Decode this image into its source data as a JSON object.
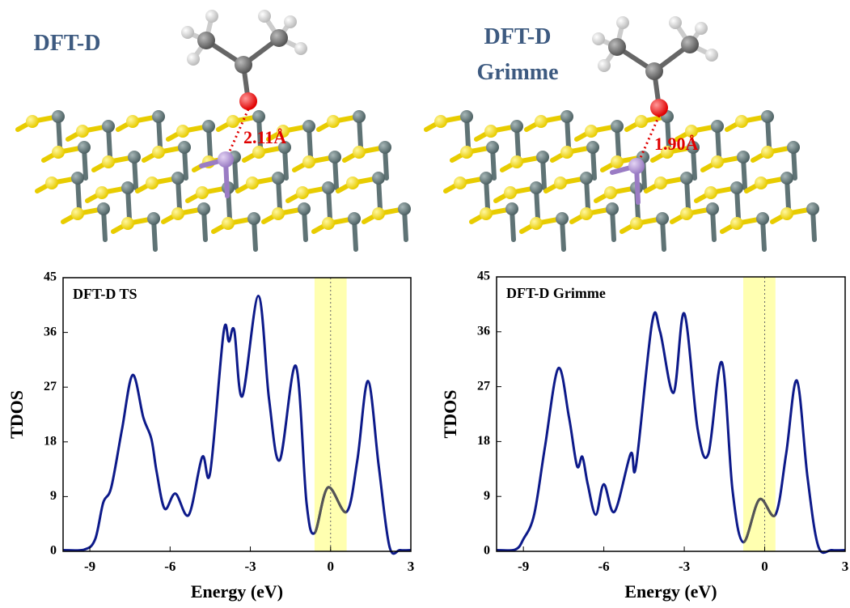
{
  "structures": [
    {
      "label": "DFT-D",
      "distance": "2.11Å"
    },
    {
      "label": "DFT-D Grimme",
      "distance": "1.90Å"
    }
  ],
  "chart_data": [
    {
      "type": "line",
      "title": "DFT-D TS",
      "x_label": "Energy (eV)",
      "y_label": "TDOS",
      "xlim": [
        -10,
        3
      ],
      "ylim": [
        0,
        45
      ],
      "xticks": [
        -9,
        -6,
        -3,
        0,
        3
      ],
      "yticks": [
        0,
        9,
        18,
        27,
        36,
        45
      ],
      "highlight": [
        -0.6,
        0.6
      ],
      "series": [
        {
          "color": "#0d1a8a",
          "x": [
            -10,
            -9.2,
            -8.8,
            -8.5,
            -8.2,
            -7.8,
            -7.4,
            -7.0,
            -6.7,
            -6.5,
            -6.2,
            -5.8,
            -5.3,
            -4.8,
            -4.5,
            -4.0,
            -3.8,
            -3.6,
            -3.3,
            -2.7,
            -2.3,
            -1.9,
            -1.3,
            -0.9,
            -0.6,
            -0.1,
            0.6,
            1.0,
            1.4,
            1.8,
            2.2,
            2.6,
            3
          ],
          "values": [
            0.2,
            0.3,
            2,
            8,
            10.5,
            20,
            29,
            22,
            18.5,
            13,
            7,
            9.5,
            6,
            15.5,
            13,
            36,
            34.5,
            36.3,
            25.5,
            42,
            25,
            15,
            30.5,
            8,
            3,
            10.5,
            6.5,
            15,
            28,
            14,
            0.8,
            0.2,
            0.2
          ]
        }
      ]
    },
    {
      "type": "line",
      "title": "DFT-D Grimme",
      "x_label": "Energy (eV)",
      "y_label": "TDOS",
      "xlim": [
        -10,
        3
      ],
      "ylim": [
        0,
        45
      ],
      "xticks": [
        -9,
        -6,
        -3,
        0,
        3
      ],
      "yticks": [
        0,
        9,
        18,
        27,
        36,
        45
      ],
      "highlight": [
        -0.8,
        0.4
      ],
      "series": [
        {
          "color": "#0d1a8a",
          "x": [
            -10,
            -9.3,
            -9.0,
            -8.6,
            -8.2,
            -7.7,
            -7.3,
            -7.0,
            -6.8,
            -6.6,
            -6.3,
            -6.0,
            -5.6,
            -5.0,
            -4.8,
            -4.2,
            -3.9,
            -3.4,
            -3.0,
            -2.5,
            -2.1,
            -1.6,
            -1.2,
            -0.8,
            -0.2,
            0.4,
            0.8,
            1.2,
            1.6,
            2.0,
            2.5,
            3
          ],
          "values": [
            0.2,
            0.3,
            2,
            6,
            17,
            30,
            22,
            14,
            15.5,
            11,
            6,
            11,
            6.5,
            16,
            14,
            37.5,
            36,
            26,
            39,
            20,
            16,
            31,
            10,
            1.5,
            8.5,
            6,
            16,
            28,
            12,
            0.8,
            0.2,
            0.2
          ]
        }
      ]
    }
  ]
}
